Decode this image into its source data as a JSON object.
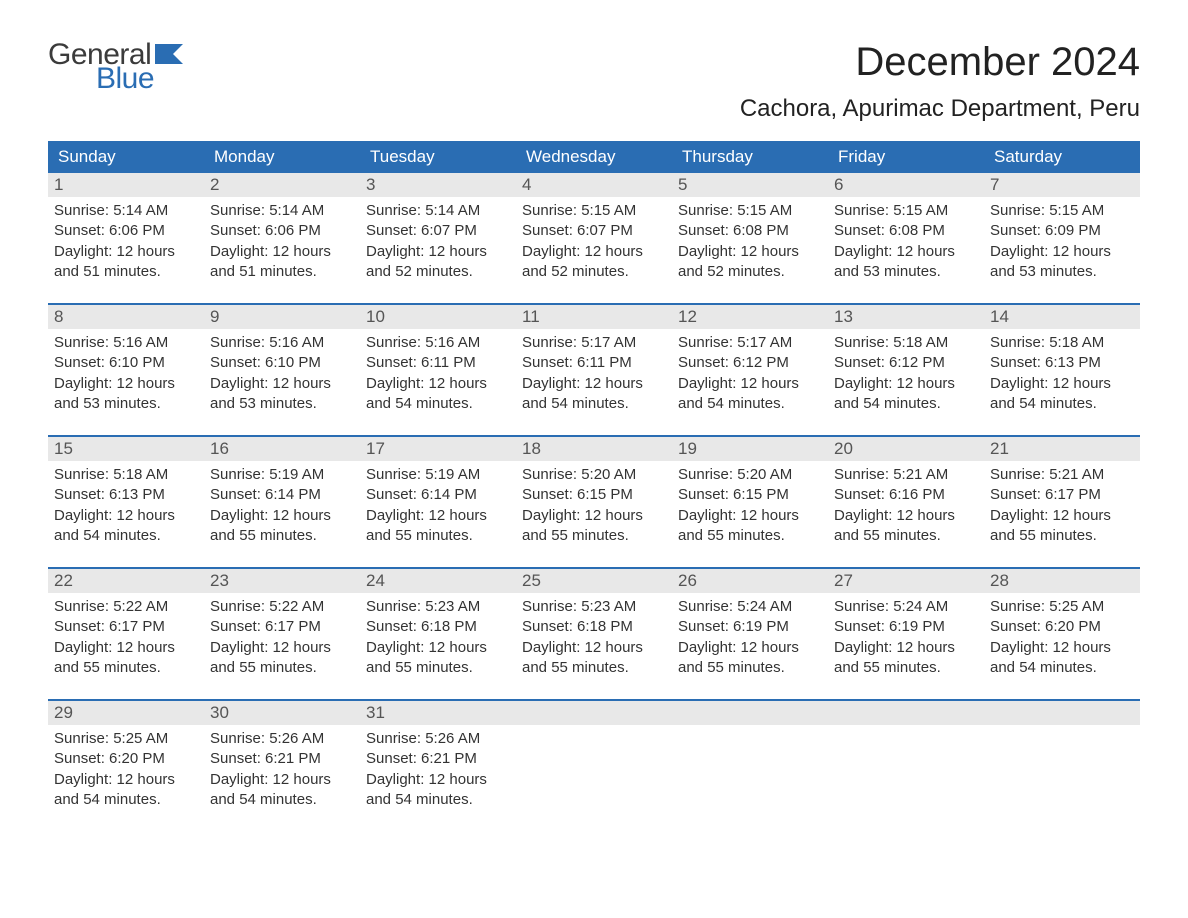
{
  "brand": {
    "word1": "General",
    "word2": "Blue",
    "text_color": "#3b3b3b",
    "accent_color": "#2a6db3"
  },
  "header": {
    "month_title": "December 2024",
    "location": "Cachora, Apurimac Department, Peru"
  },
  "calendar": {
    "type": "table",
    "background_color": "#ffffff",
    "header_bg": "#2a6db3",
    "header_text_color": "#ffffff",
    "daynum_bg": "#e8e8e8",
    "daynum_text_color": "#555555",
    "week_divider_color": "#2a6db3",
    "body_text_color": "#333333",
    "body_fontsize": 15,
    "dow_fontsize": 17,
    "columns": [
      "Sunday",
      "Monday",
      "Tuesday",
      "Wednesday",
      "Thursday",
      "Friday",
      "Saturday"
    ],
    "weeks": [
      [
        {
          "n": "1",
          "sunrise": "Sunrise: 5:14 AM",
          "sunset": "Sunset: 6:06 PM",
          "dl1": "Daylight: 12 hours",
          "dl2": "and 51 minutes."
        },
        {
          "n": "2",
          "sunrise": "Sunrise: 5:14 AM",
          "sunset": "Sunset: 6:06 PM",
          "dl1": "Daylight: 12 hours",
          "dl2": "and 51 minutes."
        },
        {
          "n": "3",
          "sunrise": "Sunrise: 5:14 AM",
          "sunset": "Sunset: 6:07 PM",
          "dl1": "Daylight: 12 hours",
          "dl2": "and 52 minutes."
        },
        {
          "n": "4",
          "sunrise": "Sunrise: 5:15 AM",
          "sunset": "Sunset: 6:07 PM",
          "dl1": "Daylight: 12 hours",
          "dl2": "and 52 minutes."
        },
        {
          "n": "5",
          "sunrise": "Sunrise: 5:15 AM",
          "sunset": "Sunset: 6:08 PM",
          "dl1": "Daylight: 12 hours",
          "dl2": "and 52 minutes."
        },
        {
          "n": "6",
          "sunrise": "Sunrise: 5:15 AM",
          "sunset": "Sunset: 6:08 PM",
          "dl1": "Daylight: 12 hours",
          "dl2": "and 53 minutes."
        },
        {
          "n": "7",
          "sunrise": "Sunrise: 5:15 AM",
          "sunset": "Sunset: 6:09 PM",
          "dl1": "Daylight: 12 hours",
          "dl2": "and 53 minutes."
        }
      ],
      [
        {
          "n": "8",
          "sunrise": "Sunrise: 5:16 AM",
          "sunset": "Sunset: 6:10 PM",
          "dl1": "Daylight: 12 hours",
          "dl2": "and 53 minutes."
        },
        {
          "n": "9",
          "sunrise": "Sunrise: 5:16 AM",
          "sunset": "Sunset: 6:10 PM",
          "dl1": "Daylight: 12 hours",
          "dl2": "and 53 minutes."
        },
        {
          "n": "10",
          "sunrise": "Sunrise: 5:16 AM",
          "sunset": "Sunset: 6:11 PM",
          "dl1": "Daylight: 12 hours",
          "dl2": "and 54 minutes."
        },
        {
          "n": "11",
          "sunrise": "Sunrise: 5:17 AM",
          "sunset": "Sunset: 6:11 PM",
          "dl1": "Daylight: 12 hours",
          "dl2": "and 54 minutes."
        },
        {
          "n": "12",
          "sunrise": "Sunrise: 5:17 AM",
          "sunset": "Sunset: 6:12 PM",
          "dl1": "Daylight: 12 hours",
          "dl2": "and 54 minutes."
        },
        {
          "n": "13",
          "sunrise": "Sunrise: 5:18 AM",
          "sunset": "Sunset: 6:12 PM",
          "dl1": "Daylight: 12 hours",
          "dl2": "and 54 minutes."
        },
        {
          "n": "14",
          "sunrise": "Sunrise: 5:18 AM",
          "sunset": "Sunset: 6:13 PM",
          "dl1": "Daylight: 12 hours",
          "dl2": "and 54 minutes."
        }
      ],
      [
        {
          "n": "15",
          "sunrise": "Sunrise: 5:18 AM",
          "sunset": "Sunset: 6:13 PM",
          "dl1": "Daylight: 12 hours",
          "dl2": "and 54 minutes."
        },
        {
          "n": "16",
          "sunrise": "Sunrise: 5:19 AM",
          "sunset": "Sunset: 6:14 PM",
          "dl1": "Daylight: 12 hours",
          "dl2": "and 55 minutes."
        },
        {
          "n": "17",
          "sunrise": "Sunrise: 5:19 AM",
          "sunset": "Sunset: 6:14 PM",
          "dl1": "Daylight: 12 hours",
          "dl2": "and 55 minutes."
        },
        {
          "n": "18",
          "sunrise": "Sunrise: 5:20 AM",
          "sunset": "Sunset: 6:15 PM",
          "dl1": "Daylight: 12 hours",
          "dl2": "and 55 minutes."
        },
        {
          "n": "19",
          "sunrise": "Sunrise: 5:20 AM",
          "sunset": "Sunset: 6:15 PM",
          "dl1": "Daylight: 12 hours",
          "dl2": "and 55 minutes."
        },
        {
          "n": "20",
          "sunrise": "Sunrise: 5:21 AM",
          "sunset": "Sunset: 6:16 PM",
          "dl1": "Daylight: 12 hours",
          "dl2": "and 55 minutes."
        },
        {
          "n": "21",
          "sunrise": "Sunrise: 5:21 AM",
          "sunset": "Sunset: 6:17 PM",
          "dl1": "Daylight: 12 hours",
          "dl2": "and 55 minutes."
        }
      ],
      [
        {
          "n": "22",
          "sunrise": "Sunrise: 5:22 AM",
          "sunset": "Sunset: 6:17 PM",
          "dl1": "Daylight: 12 hours",
          "dl2": "and 55 minutes."
        },
        {
          "n": "23",
          "sunrise": "Sunrise: 5:22 AM",
          "sunset": "Sunset: 6:17 PM",
          "dl1": "Daylight: 12 hours",
          "dl2": "and 55 minutes."
        },
        {
          "n": "24",
          "sunrise": "Sunrise: 5:23 AM",
          "sunset": "Sunset: 6:18 PM",
          "dl1": "Daylight: 12 hours",
          "dl2": "and 55 minutes."
        },
        {
          "n": "25",
          "sunrise": "Sunrise: 5:23 AM",
          "sunset": "Sunset: 6:18 PM",
          "dl1": "Daylight: 12 hours",
          "dl2": "and 55 minutes."
        },
        {
          "n": "26",
          "sunrise": "Sunrise: 5:24 AM",
          "sunset": "Sunset: 6:19 PM",
          "dl1": "Daylight: 12 hours",
          "dl2": "and 55 minutes."
        },
        {
          "n": "27",
          "sunrise": "Sunrise: 5:24 AM",
          "sunset": "Sunset: 6:19 PM",
          "dl1": "Daylight: 12 hours",
          "dl2": "and 55 minutes."
        },
        {
          "n": "28",
          "sunrise": "Sunrise: 5:25 AM",
          "sunset": "Sunset: 6:20 PM",
          "dl1": "Daylight: 12 hours",
          "dl2": "and 54 minutes."
        }
      ],
      [
        {
          "n": "29",
          "sunrise": "Sunrise: 5:25 AM",
          "sunset": "Sunset: 6:20 PM",
          "dl1": "Daylight: 12 hours",
          "dl2": "and 54 minutes."
        },
        {
          "n": "30",
          "sunrise": "Sunrise: 5:26 AM",
          "sunset": "Sunset: 6:21 PM",
          "dl1": "Daylight: 12 hours",
          "dl2": "and 54 minutes."
        },
        {
          "n": "31",
          "sunrise": "Sunrise: 5:26 AM",
          "sunset": "Sunset: 6:21 PM",
          "dl1": "Daylight: 12 hours",
          "dl2": "and 54 minutes."
        },
        {
          "n": "",
          "sunrise": "",
          "sunset": "",
          "dl1": "",
          "dl2": ""
        },
        {
          "n": "",
          "sunrise": "",
          "sunset": "",
          "dl1": "",
          "dl2": ""
        },
        {
          "n": "",
          "sunrise": "",
          "sunset": "",
          "dl1": "",
          "dl2": ""
        },
        {
          "n": "",
          "sunrise": "",
          "sunset": "",
          "dl1": "",
          "dl2": ""
        }
      ]
    ]
  }
}
